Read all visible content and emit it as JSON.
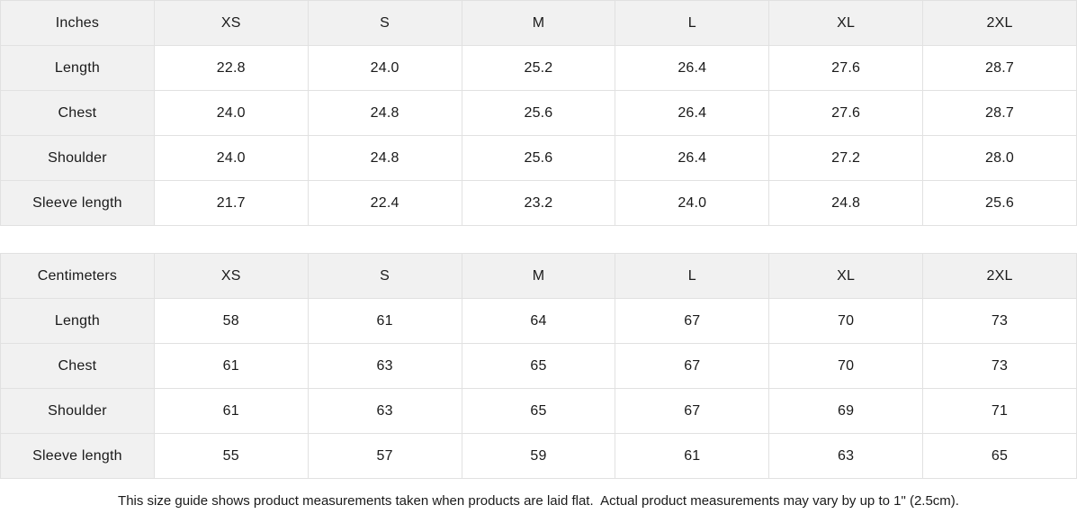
{
  "colors": {
    "header_bg": "#f1f1f1",
    "border": "#e1e1e1",
    "text": "#1a1a1a",
    "cell_bg": "#ffffff"
  },
  "tables": [
    {
      "unit_label": "Inches",
      "columns": [
        "XS",
        "S",
        "M",
        "L",
        "XL",
        "2XL"
      ],
      "rows": [
        {
          "label": "Length",
          "values": [
            "22.8",
            "24.0",
            "25.2",
            "26.4",
            "27.6",
            "28.7"
          ]
        },
        {
          "label": "Chest",
          "values": [
            "24.0",
            "24.8",
            "25.6",
            "26.4",
            "27.6",
            "28.7"
          ]
        },
        {
          "label": "Shoulder",
          "values": [
            "24.0",
            "24.8",
            "25.6",
            "26.4",
            "27.2",
            "28.0"
          ]
        },
        {
          "label": "Sleeve length",
          "values": [
            "21.7",
            "22.4",
            "23.2",
            "24.0",
            "24.8",
            "25.6"
          ]
        }
      ]
    },
    {
      "unit_label": "Centimeters",
      "columns": [
        "XS",
        "S",
        "M",
        "L",
        "XL",
        "2XL"
      ],
      "rows": [
        {
          "label": "Length",
          "values": [
            "58",
            "61",
            "64",
            "67",
            "70",
            "73"
          ]
        },
        {
          "label": "Chest",
          "values": [
            "61",
            "63",
            "65",
            "67",
            "70",
            "73"
          ]
        },
        {
          "label": "Shoulder",
          "values": [
            "61",
            "63",
            "65",
            "67",
            "69",
            "71"
          ]
        },
        {
          "label": "Sleeve length",
          "values": [
            "55",
            "57",
            "59",
            "61",
            "63",
            "65"
          ]
        }
      ]
    }
  ],
  "footer": {
    "note": "This size guide shows product measurements taken when products are laid flat.  Actual product measurements may vary by up to 1\" (2.5cm)."
  }
}
